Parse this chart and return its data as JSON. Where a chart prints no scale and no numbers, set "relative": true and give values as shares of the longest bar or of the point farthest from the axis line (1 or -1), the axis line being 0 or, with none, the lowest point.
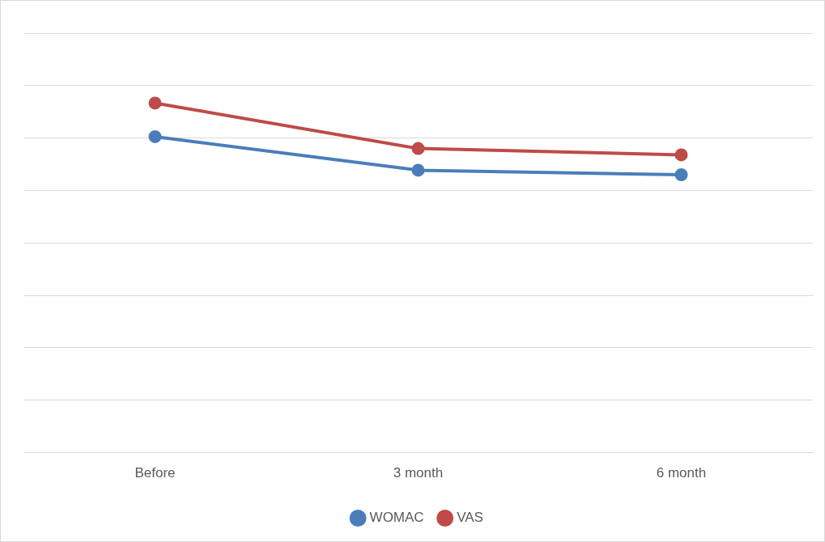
{
  "chart_data": {
    "type": "line",
    "relative": true,
    "categories": [
      "Before",
      "3 month",
      "6 month"
    ],
    "series": [
      {
        "name": "WOMAC",
        "color": "#4a7ebb",
        "values": [
          0.904,
          0.808,
          0.795
        ]
      },
      {
        "name": "VAS",
        "color": "#be4b48",
        "values": [
          1,
          0.87,
          0.852
        ]
      }
    ],
    "grid": "y",
    "legend": "bottom",
    "marker": "circle",
    "line_style": "solid"
  }
}
